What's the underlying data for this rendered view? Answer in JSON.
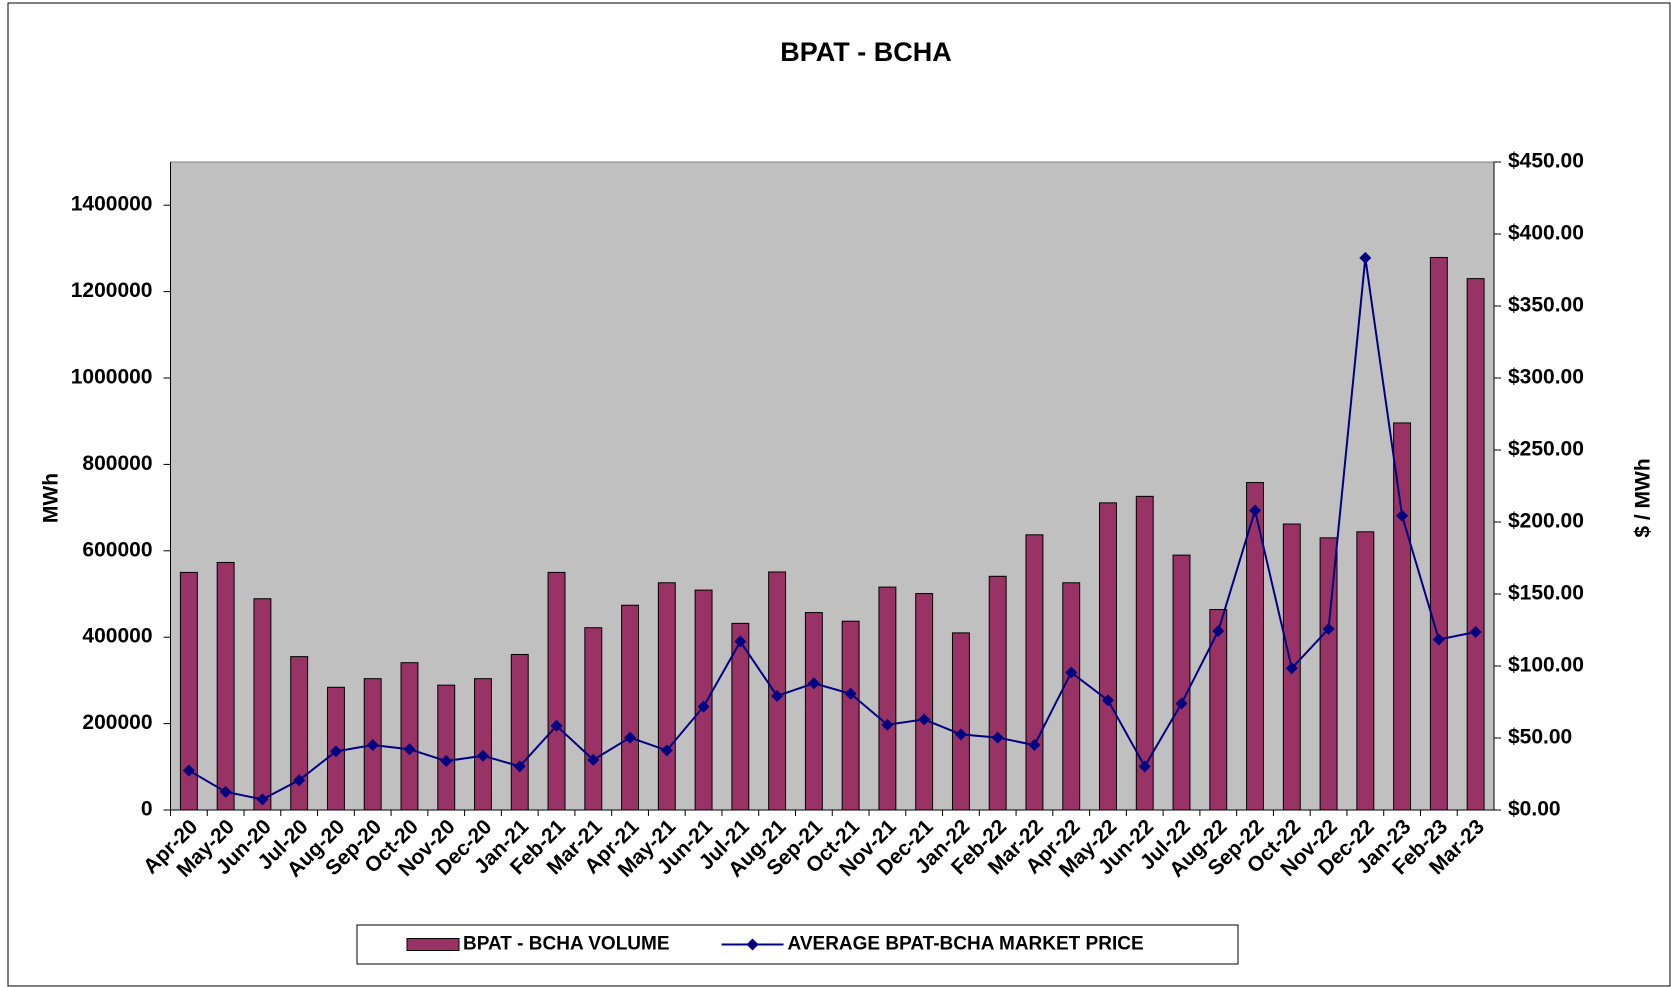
{
  "chart_data": {
    "type": "bar_line",
    "title": "BPAT - BCHA",
    "ylabel": "MWh",
    "y2label": "$ / MWh",
    "categories": [
      "Apr-20",
      "May-20",
      "Jun-20",
      "Jul-20",
      "Aug-20",
      "Sep-20",
      "Oct-20",
      "Nov-20",
      "Dec-20",
      "Jan-21",
      "Feb-21",
      "Mar-21",
      "Apr-21",
      "May-21",
      "Jun-21",
      "Jul-21",
      "Aug-21",
      "Sep-21",
      "Oct-21",
      "Nov-21",
      "Dec-21",
      "Jan-22",
      "Feb-22",
      "Mar-22",
      "Apr-22",
      "May-22",
      "Jun-22",
      "Jul-22",
      "Aug-22",
      "Sep-22",
      "Oct-22",
      "Nov-22",
      "Dec-22",
      "Jan-23",
      "Feb-23",
      "Mar-23"
    ],
    "series": [
      {
        "name": "BPAT - BCHA VOLUME",
        "type": "bar",
        "color": "#993366",
        "values": [
          550000,
          573000,
          489000,
          355000,
          284000,
          304000,
          341000,
          289000,
          304000,
          360000,
          550000,
          422000,
          474000,
          526000,
          509000,
          432000,
          551000,
          457000,
          437000,
          516000,
          501000,
          410000,
          541000,
          637000,
          526000,
          711000,
          726000,
          590000,
          464000,
          758000,
          662000,
          630000,
          644000,
          896000,
          1279000,
          1230000
        ]
      },
      {
        "name": "AVERAGE BPAT-BCHA MARKET PRICE",
        "type": "line",
        "axis": "y2",
        "color": "#000080",
        "values": [
          27.4,
          12.6,
          7.4,
          20.7,
          40.7,
          45.1,
          42.2,
          34,
          37.7,
          30.3,
          58.5,
          34.8,
          50.3,
          41.4,
          71.8,
          117,
          79.2,
          88,
          80.7,
          59.2,
          62.9,
          52.5,
          50.3,
          45.1,
          95.5,
          76.2,
          30.3,
          74,
          124.3,
          208,
          98.4,
          125.8,
          383.4,
          204.3,
          118.4,
          123.6
        ]
      }
    ],
    "ylim": [
      0,
      1500000
    ],
    "yticks": [
      0,
      200000,
      400000,
      600000,
      800000,
      1000000,
      1200000,
      1400000
    ],
    "y2lim": [
      0,
      450
    ],
    "y2ticks": [
      {
        "value": 0,
        "label": "$0.00"
      },
      {
        "value": 50,
        "label": "$50.00"
      },
      {
        "value": 100,
        "label": "$100.00"
      },
      {
        "value": 150,
        "label": "$150.00"
      },
      {
        "value": 200,
        "label": "$200.00"
      },
      {
        "value": 250,
        "label": "$250.00"
      },
      {
        "value": 300,
        "label": "$300.00"
      },
      {
        "value": 350,
        "label": "$350.00"
      },
      {
        "value": 400,
        "label": "$400.00"
      },
      {
        "value": 450,
        "label": "$450.00"
      }
    ],
    "plot_background": "#c0c0c0",
    "legend": "bottom"
  }
}
